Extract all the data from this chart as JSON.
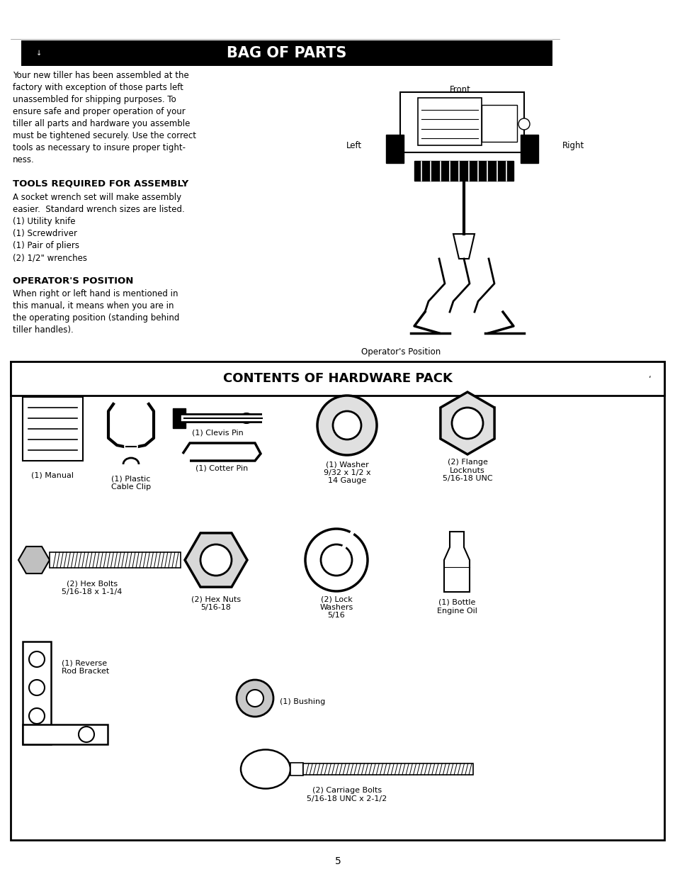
{
  "page_bg": "#ffffff",
  "header_bg": "#000000",
  "header_text": "BAG OF PARTS",
  "header_text_color": "#ffffff",
  "header_fontsize": 15,
  "body_fontsize": 8.5,
  "bold_fontsize": 9.5,
  "intro_text": "Your new tiller has been assembled at the\nfactory with exception of those parts left\nunassembled for shipping purposes. To\nensure safe and proper operation of your\ntiller all parts and hardware you assemble\nmust be tightened securely. Use the correct\ntools as necessary to insure proper tight-\nness.",
  "tools_heading": "TOOLS REQUIRED FOR ASSEMBLY",
  "tools_text": "A socket wrench set will make assembly\neasier.  Standard wrench sizes are listed.\n(1) Utility knife\n(1) Screwdriver\n(1) Pair of pliers\n(2) 1/2\" wrenches",
  "ops_heading": "OPERATOR'S POSITION",
  "ops_text": "When right or left hand is mentioned in\nthis manual, it means when you are in\nthe operating position (standing behind\ntiller handles).",
  "front_label": "Front",
  "left_label": "Left",
  "right_label": "Right",
  "ops_position_label": "Operator's Position",
  "hardware_title": "CONTENTS OF HARDWARE PACK",
  "hardware_title_fontsize": 13,
  "page_number": "5"
}
